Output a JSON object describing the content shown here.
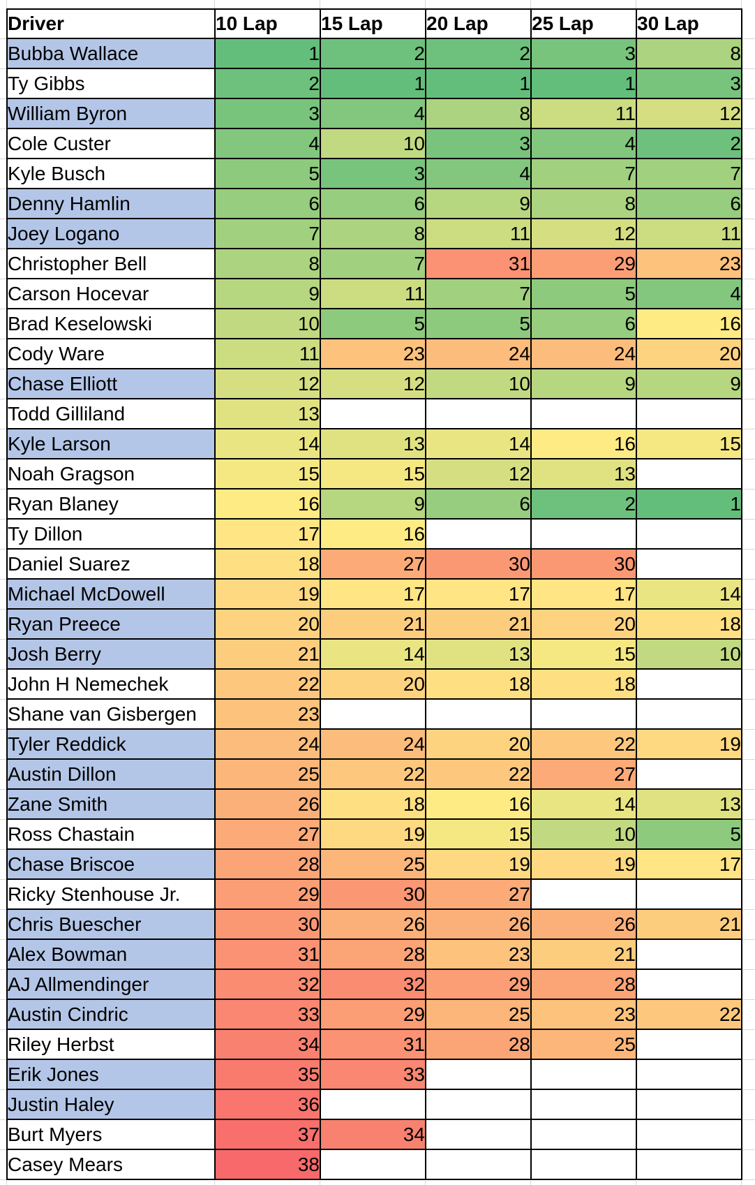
{
  "table": {
    "header": {
      "driver": "Driver",
      "laps": [
        "10 Lap",
        "15 Lap",
        "20 Lap",
        "25 Lap",
        "30 Lap"
      ]
    },
    "color_scale": {
      "min_value": 1,
      "min_color": "#63BE7B",
      "mid_value": 16,
      "mid_color": "#FFEB84",
      "max_value": 38,
      "max_color": "#F8696B",
      "empty_color": "#FFFFFF"
    },
    "row_highlight_color": "#B4C6E7",
    "border_color": "#000000",
    "gridline_color": "#D6D6D6",
    "rows": [
      {
        "driver": "Bubba Wallace",
        "highlighted": true,
        "values": [
          1,
          2,
          2,
          3,
          8
        ]
      },
      {
        "driver": "Ty Gibbs",
        "highlighted": false,
        "values": [
          2,
          1,
          1,
          1,
          3
        ]
      },
      {
        "driver": "William Byron",
        "highlighted": true,
        "values": [
          3,
          4,
          8,
          11,
          12
        ]
      },
      {
        "driver": "Cole Custer",
        "highlighted": false,
        "values": [
          4,
          10,
          3,
          4,
          2
        ]
      },
      {
        "driver": "Kyle Busch",
        "highlighted": false,
        "values": [
          5,
          3,
          4,
          7,
          7
        ]
      },
      {
        "driver": "Denny Hamlin",
        "highlighted": true,
        "values": [
          6,
          6,
          9,
          8,
          6
        ]
      },
      {
        "driver": "Joey Logano",
        "highlighted": true,
        "values": [
          7,
          8,
          11,
          12,
          11
        ]
      },
      {
        "driver": "Christopher Bell",
        "highlighted": false,
        "values": [
          8,
          7,
          31,
          29,
          23
        ]
      },
      {
        "driver": "Carson Hocevar",
        "highlighted": false,
        "values": [
          9,
          11,
          7,
          5,
          4
        ]
      },
      {
        "driver": "Brad Keselowski",
        "highlighted": false,
        "values": [
          10,
          5,
          5,
          6,
          16
        ]
      },
      {
        "driver": "Cody Ware",
        "highlighted": false,
        "values": [
          11,
          23,
          24,
          24,
          20
        ]
      },
      {
        "driver": "Chase Elliott",
        "highlighted": true,
        "values": [
          12,
          12,
          10,
          9,
          9
        ]
      },
      {
        "driver": "Todd Gilliland",
        "highlighted": false,
        "values": [
          13,
          null,
          null,
          null,
          null
        ]
      },
      {
        "driver": "Kyle Larson",
        "highlighted": true,
        "values": [
          14,
          13,
          14,
          16,
          15
        ]
      },
      {
        "driver": "Noah Gragson",
        "highlighted": false,
        "values": [
          15,
          15,
          12,
          13,
          null
        ]
      },
      {
        "driver": "Ryan Blaney",
        "highlighted": false,
        "values": [
          16,
          9,
          6,
          2,
          1
        ]
      },
      {
        "driver": "Ty Dillon",
        "highlighted": false,
        "values": [
          17,
          16,
          null,
          null,
          null
        ]
      },
      {
        "driver": "Daniel Suarez",
        "highlighted": false,
        "values": [
          18,
          27,
          30,
          30,
          null
        ]
      },
      {
        "driver": "Michael McDowell",
        "highlighted": true,
        "values": [
          19,
          17,
          17,
          17,
          14
        ]
      },
      {
        "driver": "Ryan Preece",
        "highlighted": true,
        "values": [
          20,
          21,
          21,
          20,
          18
        ]
      },
      {
        "driver": "Josh Berry",
        "highlighted": true,
        "values": [
          21,
          14,
          13,
          15,
          10
        ]
      },
      {
        "driver": "John H Nemechek",
        "highlighted": false,
        "values": [
          22,
          20,
          18,
          18,
          null
        ]
      },
      {
        "driver": "Shane van Gisbergen",
        "highlighted": false,
        "values": [
          23,
          null,
          null,
          null,
          null
        ]
      },
      {
        "driver": "Tyler Reddick",
        "highlighted": true,
        "values": [
          24,
          24,
          20,
          22,
          19
        ]
      },
      {
        "driver": "Austin Dillon",
        "highlighted": true,
        "values": [
          25,
          22,
          22,
          27,
          null
        ]
      },
      {
        "driver": "Zane Smith",
        "highlighted": true,
        "values": [
          26,
          18,
          16,
          14,
          13
        ]
      },
      {
        "driver": "Ross Chastain",
        "highlighted": false,
        "values": [
          27,
          19,
          15,
          10,
          5
        ]
      },
      {
        "driver": "Chase Briscoe",
        "highlighted": true,
        "values": [
          28,
          25,
          19,
          19,
          17
        ]
      },
      {
        "driver": "Ricky Stenhouse Jr.",
        "highlighted": false,
        "values": [
          29,
          30,
          27,
          null,
          null
        ]
      },
      {
        "driver": "Chris Buescher",
        "highlighted": true,
        "values": [
          30,
          26,
          26,
          26,
          21
        ]
      },
      {
        "driver": "Alex Bowman",
        "highlighted": true,
        "values": [
          31,
          28,
          23,
          21,
          null
        ]
      },
      {
        "driver": "AJ Allmendinger",
        "highlighted": true,
        "values": [
          32,
          32,
          29,
          28,
          null
        ]
      },
      {
        "driver": "Austin Cindric",
        "highlighted": true,
        "values": [
          33,
          29,
          25,
          23,
          22
        ]
      },
      {
        "driver": "Riley Herbst",
        "highlighted": false,
        "values": [
          34,
          31,
          28,
          25,
          null
        ]
      },
      {
        "driver": "Erik Jones",
        "highlighted": true,
        "values": [
          35,
          33,
          null,
          null,
          null
        ]
      },
      {
        "driver": "Justin Haley",
        "highlighted": true,
        "values": [
          36,
          null,
          null,
          null,
          null
        ]
      },
      {
        "driver": "Burt Myers",
        "highlighted": false,
        "values": [
          37,
          34,
          null,
          null,
          null
        ]
      },
      {
        "driver": "Casey Mears",
        "highlighted": false,
        "values": [
          38,
          null,
          null,
          null,
          null
        ]
      }
    ]
  }
}
